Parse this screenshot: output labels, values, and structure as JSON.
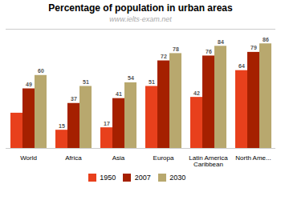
{
  "chart_data": {
    "type": "bar",
    "title": "Percentage of population in urban areas",
    "subtitle": "www.ielts-exam.net",
    "categories": [
      "World",
      "Africa",
      "Asia",
      "Europa",
      "Latin America\nCaribbean",
      "North Ame..."
    ],
    "series": [
      {
        "name": "1950",
        "color": "#e8401c",
        "values": [
          29,
          15,
          17,
          51,
          42,
          64
        ],
        "value_labels": [
          null,
          "15",
          "17",
          "51",
          "42",
          "64"
        ]
      },
      {
        "name": "2007",
        "color": "#a52000",
        "values": [
          49,
          37,
          41,
          72,
          76,
          79
        ]
      },
      {
        "name": "2030",
        "color": "#b8a86e",
        "values": [
          60,
          51,
          54,
          78,
          84,
          86
        ]
      }
    ],
    "ylim": [
      0,
      98
    ],
    "yticks": [],
    "grid": false,
    "legend": "bottom",
    "data_labels": true,
    "tick_labels": "x"
  }
}
